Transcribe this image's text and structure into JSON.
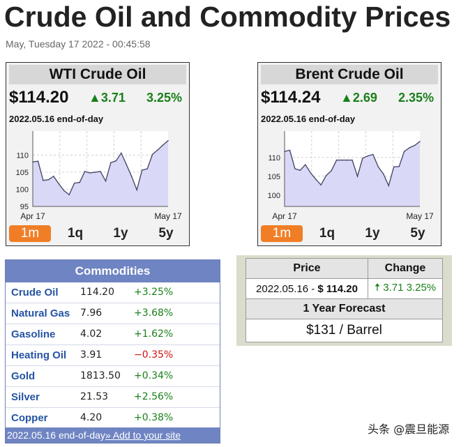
{
  "page": {
    "title": "Crude Oil and Commodity Prices",
    "timestamp": "May, Tuesday 17 2022 - 00:45:58"
  },
  "widgets": {
    "wti": {
      "title": "WTI Crude Oil",
      "price": "$114.20",
      "change": "▲3.71",
      "percent": "3.25%",
      "date_line": "2022.05.16 end-of-day",
      "tabs": [
        "1m",
        "1q",
        "1y",
        "5y"
      ],
      "active_tab": "1m"
    },
    "brent": {
      "title": "Brent Crude Oil",
      "price": "$114.24",
      "change": "▲2.69",
      "percent": "2.35%",
      "date_line": "2022.05.16 end-of-day",
      "tabs": [
        "1m",
        "1q",
        "1y",
        "5y"
      ],
      "active_tab": "1m"
    }
  },
  "chart_data": [
    {
      "type": "area",
      "title": "WTI Crude Oil",
      "xlabel": "",
      "ylabel": "",
      "x_tick_labels": [
        "Apr 17",
        "May 17"
      ],
      "y_ticks": [
        95,
        100,
        105,
        110
      ],
      "ylim": [
        95,
        117
      ],
      "grid": true,
      "values": [
        108,
        108.2,
        102.6,
        102.8,
        103.8,
        101.6,
        99.6,
        98.4,
        101.8,
        102,
        105.2,
        104.8,
        105,
        105.2,
        102.4,
        107.8,
        108.3,
        110.6,
        107.2,
        103.7,
        99.8,
        105.6,
        106,
        110.2,
        111.5,
        112.9,
        114.2
      ],
      "color": "#d9d9f7",
      "line_color": "#4a4a6a"
    },
    {
      "type": "area",
      "title": "Brent Crude Oil",
      "xlabel": "",
      "ylabel": "",
      "x_tick_labels": [
        "Apr 17",
        "May 17"
      ],
      "y_ticks": [
        100,
        105,
        110
      ],
      "ylim": [
        97,
        117
      ],
      "grid": true,
      "values": [
        111.6,
        111.9,
        107,
        106.6,
        108.1,
        105.9,
        104.2,
        102.7,
        105.2,
        106.5,
        109.3,
        109.3,
        109.3,
        109.3,
        105,
        109.8,
        110.4,
        110.8,
        107.5,
        105.6,
        102.5,
        107.5,
        107.6,
        111.6,
        112.6,
        113.2,
        114.24
      ],
      "color": "#d9d9f7",
      "line_color": "#4a4a6a"
    }
  ],
  "commodities": {
    "header": "Commodities",
    "rows": [
      {
        "name": "Crude Oil",
        "price": "114.20",
        "change": "+3.25%"
      },
      {
        "name": "Natural Gas",
        "price": "7.96",
        "change": "+3.68%"
      },
      {
        "name": "Gasoline",
        "price": "4.02",
        "change": "+1.62%"
      },
      {
        "name": "Heating Oil",
        "price": "3.91",
        "change": "−0.35%"
      },
      {
        "name": "Gold",
        "price": "1813.50",
        "change": "+0.34%"
      },
      {
        "name": "Silver",
        "price": "21.53",
        "change": "+2.56%"
      },
      {
        "name": "Copper",
        "price": "4.20",
        "change": "+0.38%"
      }
    ],
    "footer_text": "2022.05.16 end-of-day",
    "footer_link": "» Add to your site"
  },
  "price_table": {
    "col_price": "Price",
    "col_change": "Change",
    "price_value_prefix": "2022.05.16 - ",
    "price_value": "$ 114.20",
    "change_arrow": "🠅",
    "change_value": "3.71",
    "change_pct": "3.25%",
    "forecast_header": "1 Year Forecast",
    "forecast_value": "$131 / Barrel"
  },
  "watermark": "头条 @震旦能源",
  "colors": {
    "accent_orange": "#f07e26",
    "positive": "#1a7f1a",
    "negative": "#d01010",
    "header_blue": "#6f84c2"
  }
}
